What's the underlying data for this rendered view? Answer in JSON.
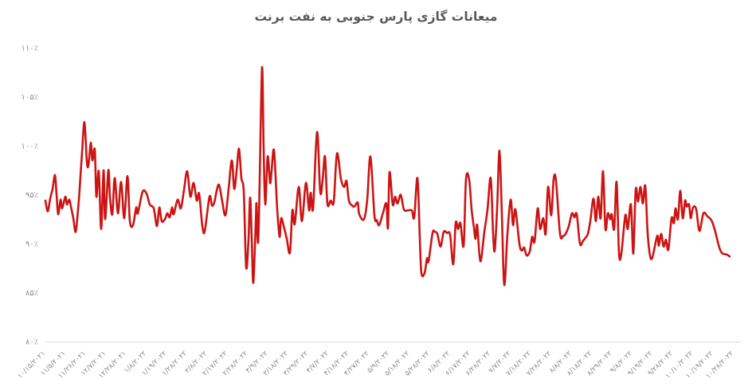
{
  "page": {
    "title": "میعانات گازی پارس جنوبی به نفت برنت"
  },
  "chart_data": {
    "type": "line",
    "title": "میعانات گازی پارس جنوبی به نفت برنت",
    "line_color": "#cc1414",
    "title_color": "#595959",
    "tick_text_color": "#8c8c8c",
    "axis_line_color": "#d9d9d9",
    "background_color": "#ffffff",
    "grid": "off",
    "legend": "none",
    "y_axis": {
      "unit": "%",
      "min": 80,
      "max": 110,
      "tick_step": 5,
      "tick_values": [
        110,
        105,
        100,
        95,
        90,
        85,
        80
      ],
      "tick_labels": [
        "۱۱۰٪",
        "۱۰۵٪",
        "۱۰۰٪",
        "۹۵٪",
        "۹۰٪",
        "۸۵٪",
        "۸۰٪"
      ]
    },
    "x_axis": {
      "tick_labels": [
        "۱۰/۱۵/۲۰۲۱",
        "۱۱/۵/۲۰۲۱",
        "۱۱/۲۶/۲۰۲۱",
        "۱۲/۷/۲۰۲۱",
        "۱۲/۲۸/۲۰۲۱",
        "۱/۸/۲۰۲۲",
        "۱/۱۹/۲۰۲۲",
        "۱/۲۸/۲۰۲۲",
        "۲/۸/۲۰۲۲",
        "۲/۱۷/۲۰۲۲",
        "۲/۲۸/۲۰۲۲",
        "۳/۹/۲۰۲۲",
        "۳/۱۸/۲۰۲۲",
        "۳/۲۹/۲۰۲۲",
        "۴/۷/۲۰۲۲",
        "۴/۱۸/۲۰۲۲",
        "۴/۲۷/۲۰۲۲",
        "۵/۹/۲۰۲۲",
        "۵/۱۸/۲۰۲۲",
        "۵/۲۸/۲۰۲۲",
        "۶/۸/۲۰۲۲",
        "۶/۱۷/۲۰۲۲",
        "۶/۲۸/۲۰۲۲",
        "۷/۷/۲۰۲۲",
        "۷/۱۸/۲۰۲۲",
        "۷/۲۸/۲۰۲۲",
        "۸/۸/۲۰۲۲",
        "۸/۱۸/۲۰۲۲",
        "۸/۲۹/۲۰۲۲",
        "۹/۸/۲۰۲۲",
        "۹/۱۹/۲۰۲۲",
        "۹/۲۸/۲۰۲۲",
        "۱۰/۱۰/۲۰۲۲",
        "۱۰/۱۹/۲۰۲۲",
        "۱۰/۲۸/۲۰۲۲"
      ]
    },
    "series": [
      {
        "name": "میعانات گازی پارس جنوبی به نفت برنت",
        "unit": "%",
        "points": [
          [
            57,
            94.4
          ],
          [
            60,
            93.3
          ],
          [
            63,
            94.6
          ],
          [
            66,
            95.6
          ],
          [
            69,
            97.0
          ],
          [
            71,
            95.0
          ],
          [
            73,
            93.0
          ],
          [
            76,
            94.5
          ],
          [
            78,
            93.6
          ],
          [
            82,
            94.8
          ],
          [
            84,
            94.0
          ],
          [
            87,
            94.5
          ],
          [
            89,
            93.8
          ],
          [
            92,
            92.6
          ],
          [
            95,
            91.2
          ],
          [
            98,
            93.5
          ],
          [
            100,
            95.6
          ],
          [
            103,
            99.3
          ],
          [
            106,
            102.4
          ],
          [
            109,
            98.4
          ],
          [
            111,
            98.0
          ],
          [
            114,
            100.3
          ],
          [
            116,
            98.5
          ],
          [
            119,
            99.6
          ],
          [
            121,
            94.8
          ],
          [
            124,
            97.4
          ],
          [
            127,
            91.5
          ],
          [
            130,
            97.5
          ],
          [
            132,
            92.5
          ],
          [
            136,
            97.5
          ],
          [
            138,
            94.8
          ],
          [
            141,
            93.0
          ],
          [
            144,
            96.7
          ],
          [
            148,
            93.1
          ],
          [
            152,
            96.3
          ],
          [
            156,
            92.6
          ],
          [
            160,
            96.9
          ],
          [
            163,
            92.3
          ],
          [
            167,
            91.9
          ],
          [
            171,
            93.7
          ],
          [
            173,
            93.1
          ],
          [
            179,
            95.3
          ],
          [
            184,
            95.1
          ],
          [
            188,
            94.0
          ],
          [
            193,
            93.6
          ],
          [
            197,
            91.8
          ],
          [
            200,
            93.7
          ],
          [
            203,
            92.3
          ],
          [
            207,
            92.5
          ],
          [
            210,
            93.1
          ],
          [
            213,
            92.7
          ],
          [
            216,
            93.7
          ],
          [
            218,
            93.0
          ],
          [
            223,
            94.5
          ],
          [
            227,
            93.6
          ],
          [
            231,
            95.5
          ],
          [
            235,
            97.4
          ],
          [
            239,
            94.8
          ],
          [
            243,
            96.2
          ],
          [
            247,
            94.4
          ],
          [
            250,
            95.1
          ],
          [
            254,
            91.8
          ],
          [
            257,
            91.3
          ],
          [
            263,
            94.8
          ],
          [
            266,
            93.9
          ],
          [
            269,
            94.2
          ],
          [
            272,
            95.4
          ],
          [
            275,
            96.0
          ],
          [
            279,
            94.3
          ],
          [
            283,
            92.9
          ],
          [
            287,
            95.6
          ],
          [
            291,
            98.5
          ],
          [
            294,
            95.6
          ],
          [
            297,
            97.4
          ],
          [
            300,
            99.7
          ],
          [
            303,
            96.7
          ],
          [
            306,
            95.3
          ],
          [
            309,
            87.6
          ],
          [
            312,
            90.5
          ],
          [
            314,
            94.7
          ],
          [
            316,
            90.5
          ],
          [
            318,
            86.0
          ],
          [
            321,
            92.0
          ],
          [
            322,
            94.1
          ],
          [
            324,
            90.1
          ],
          [
            326,
            96.5
          ],
          [
            329,
            108.0
          ],
          [
            331,
            99.5
          ],
          [
            333,
            94.0
          ],
          [
            336,
            98.9
          ],
          [
            339,
            96.2
          ],
          [
            341,
            97.5
          ],
          [
            344,
            99.5
          ],
          [
            348,
            93.5
          ],
          [
            351,
            90.7
          ],
          [
            353,
            92.6
          ],
          [
            357,
            91.5
          ],
          [
            360,
            90.5
          ],
          [
            364,
            89.1
          ],
          [
            367,
            93.4
          ],
          [
            370,
            92.0
          ],
          [
            375,
            95.8
          ],
          [
            379,
            92.3
          ],
          [
            384,
            96.2
          ],
          [
            388,
            93.4
          ],
          [
            390,
            95.2
          ],
          [
            393,
            93.6
          ],
          [
            398,
            101.4
          ],
          [
            402,
            95.3
          ],
          [
            405,
            96.5
          ],
          [
            408,
            98.9
          ],
          [
            411,
            94.1
          ],
          [
            415,
            94.4
          ],
          [
            419,
            94.3
          ],
          [
            423,
            99.2
          ],
          [
            428,
            96.6
          ],
          [
            432,
            95.8
          ],
          [
            435,
            96.4
          ],
          [
            438,
            94.4
          ],
          [
            442,
            93.9
          ],
          [
            445,
            93.8
          ],
          [
            449,
            94.2
          ],
          [
            451,
            93.0
          ],
          [
            457,
            92.5
          ],
          [
            461,
            94.5
          ],
          [
            465,
            98.9
          ],
          [
            470,
            92.9
          ],
          [
            473,
            92.4
          ],
          [
            476,
            91.9
          ],
          [
            481,
            93.2
          ],
          [
            485,
            94.1
          ],
          [
            487,
            91.6
          ],
          [
            489,
            97.3
          ],
          [
            493,
            94.0
          ],
          [
            496,
            94.8
          ],
          [
            499,
            94.1
          ],
          [
            503,
            95.0
          ],
          [
            507,
            93.5
          ],
          [
            512,
            93.4
          ],
          [
            517,
            93.4
          ],
          [
            520,
            92.7
          ],
          [
            524,
            96.7
          ],
          [
            527,
            90.5
          ],
          [
            529,
            87.0
          ],
          [
            533,
            87.0
          ],
          [
            536,
            88.5
          ],
          [
            538,
            88.2
          ],
          [
            543,
            91.1
          ],
          [
            546,
            91.2
          ],
          [
            549,
            91.0
          ],
          [
            553,
            89.7
          ],
          [
            557,
            91.2
          ],
          [
            561,
            91.1
          ],
          [
            565,
            90.9
          ],
          [
            569,
            87.9
          ],
          [
            572,
            92.1
          ],
          [
            575,
            91.5
          ],
          [
            578,
            92.1
          ],
          [
            582,
            89.8
          ],
          [
            585,
            96.6
          ],
          [
            589,
            96.5
          ],
          [
            592,
            93.5
          ],
          [
            595,
            91.6
          ],
          [
            597,
            90.5
          ],
          [
            599,
            91.9
          ],
          [
            603,
            88.2
          ],
          [
            608,
            91.2
          ],
          [
            612,
            93.5
          ],
          [
            616,
            96.7
          ],
          [
            619,
            91.0
          ],
          [
            621,
            89.3
          ],
          [
            624,
            93.5
          ],
          [
            627,
            99.5
          ],
          [
            630,
            93.0
          ],
          [
            633,
            85.8
          ],
          [
            637,
            91.0
          ],
          [
            641,
            94.5
          ],
          [
            644,
            91.9
          ],
          [
            647,
            93.5
          ],
          [
            652,
            90.0
          ],
          [
            655,
            89.3
          ],
          [
            658,
            89.6
          ],
          [
            661,
            88.8
          ],
          [
            665,
            89.2
          ],
          [
            668,
            90.7
          ],
          [
            671,
            90.2
          ],
          [
            675,
            93.6
          ],
          [
            678,
            91.5
          ],
          [
            682,
            92.6
          ],
          [
            685,
            91.0
          ],
          [
            688,
            95.8
          ],
          [
            692,
            92.9
          ],
          [
            695,
            96.6
          ],
          [
            698,
            96.4
          ],
          [
            703,
            91.0
          ],
          [
            707,
            90.8
          ],
          [
            710,
            91.0
          ],
          [
            714,
            91.8
          ],
          [
            718,
            93.1
          ],
          [
            721,
            92.7
          ],
          [
            724,
            93.0
          ],
          [
            728,
            90.0
          ],
          [
            732,
            90.3
          ],
          [
            735,
            90.6
          ],
          [
            738,
            91.0
          ],
          [
            741,
            92.3
          ],
          [
            745,
            94.6
          ],
          [
            748,
            92.3
          ],
          [
            751,
            94.8
          ],
          [
            754,
            92.6
          ],
          [
            757,
            97.4
          ],
          [
            760,
            91.5
          ],
          [
            763,
            93.1
          ],
          [
            766,
            92.5
          ],
          [
            768,
            93.0
          ],
          [
            771,
            91.5
          ],
          [
            774,
            96.3
          ],
          [
            777,
            89.1
          ],
          [
            780,
            89.0
          ],
          [
            785,
            92.9
          ],
          [
            788,
            91.5
          ],
          [
            792,
            94.0
          ],
          [
            795,
            89.0
          ],
          [
            798,
            95.5
          ],
          [
            801,
            94.3
          ],
          [
            804,
            95.8
          ],
          [
            807,
            94.1
          ],
          [
            810,
            95.9
          ],
          [
            813,
            91.1
          ],
          [
            816,
            88.8
          ],
          [
            819,
            88.6
          ],
          [
            825,
            90.8
          ],
          [
            827,
            89.8
          ],
          [
            830,
            91.0
          ],
          [
            833,
            89.7
          ],
          [
            836,
            90.4
          ],
          [
            839,
            89.4
          ],
          [
            843,
            92.6
          ],
          [
            846,
            92.1
          ],
          [
            848,
            93.6
          ],
          [
            851,
            92.5
          ],
          [
            854,
            95.4
          ],
          [
            857,
            92.6
          ],
          [
            860,
            94.4
          ],
          [
            862,
            93.8
          ],
          [
            865,
            94.0
          ],
          [
            867,
            92.6
          ],
          [
            870,
            93.7
          ],
          [
            874,
            93.5
          ],
          [
            878,
            91.3
          ],
          [
            883,
            93.1
          ],
          [
            888,
            92.8
          ],
          [
            893,
            92.4
          ],
          [
            897,
            91.5
          ],
          [
            903,
            89.6
          ],
          [
            907,
            89.0
          ],
          [
            912,
            88.9
          ],
          [
            916,
            88.7
          ]
        ]
      }
    ]
  }
}
